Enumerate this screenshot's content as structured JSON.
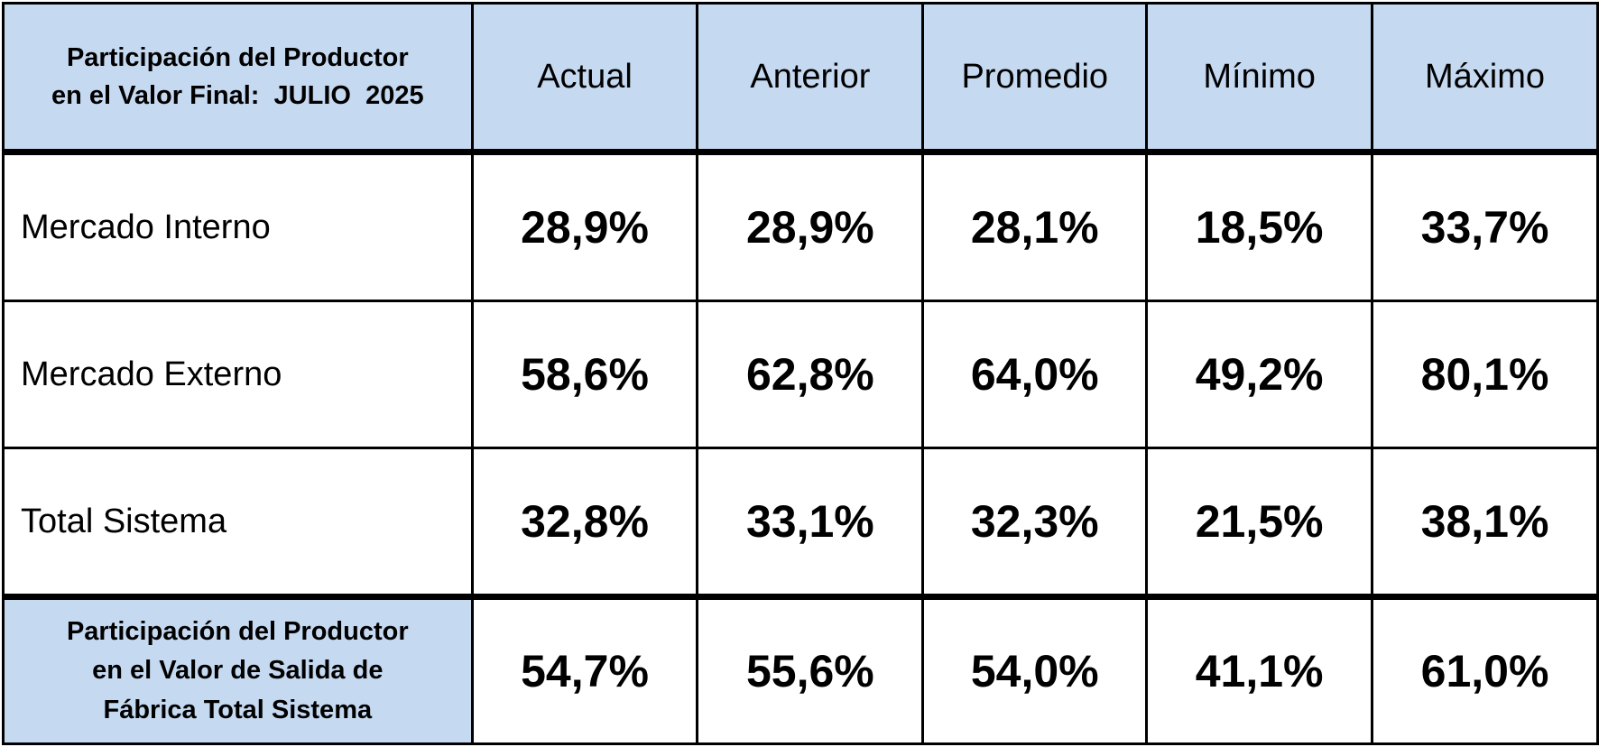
{
  "table": {
    "header": [
      "Participación del Productor\nen el Valor Final:  JULIO  2025",
      "Actual",
      "Anterior",
      "Promedio",
      "Mínimo",
      "Máximo"
    ],
    "rows": [
      [
        "Mercado Interno",
        "28,9%",
        "28,9%",
        "28,1%",
        "18,5%",
        "33,7%"
      ],
      [
        "Mercado Externo",
        "58,6%",
        "62,8%",
        "64,0%",
        "49,2%",
        "80,1%"
      ],
      [
        "Total Sistema",
        "32,8%",
        "33,1%",
        "32,3%",
        "21,5%",
        "38,1%"
      ]
    ],
    "footer": [
      "Participación del Productor\nen el Valor de Salida de\nFábrica Total Sistema",
      "54,7%",
      "55,6%",
      "54,0%",
      "41,1%",
      "61,0%"
    ]
  }
}
